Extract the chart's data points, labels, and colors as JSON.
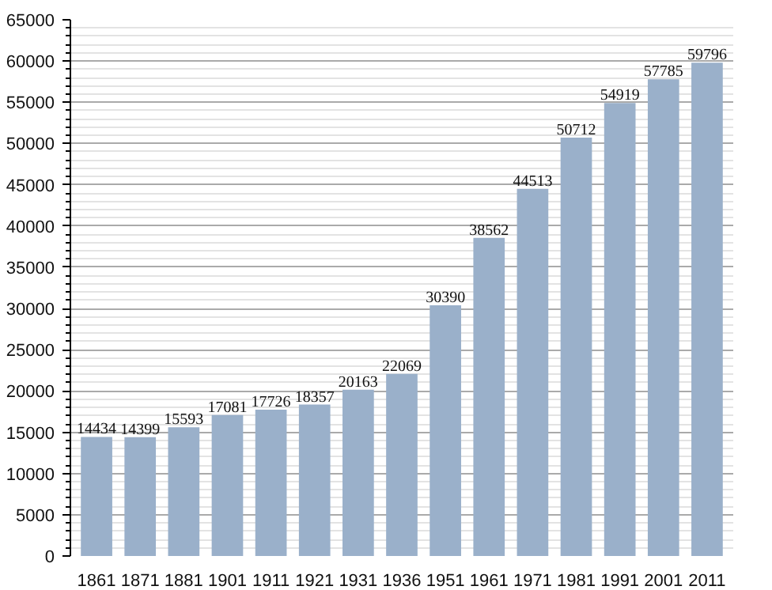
{
  "chart_data": {
    "type": "bar",
    "categories": [
      "1861",
      "1871",
      "1881",
      "1901",
      "1911",
      "1921",
      "1931",
      "1936",
      "1951",
      "1961",
      "1971",
      "1981",
      "1991",
      "2001",
      "2011"
    ],
    "values": [
      14434,
      14399,
      15593,
      17081,
      17726,
      18357,
      20163,
      22069,
      30390,
      38562,
      44513,
      50712,
      54919,
      57785,
      59796
    ],
    "color": "#9ab0ca",
    "data_labels": true,
    "grid": "y",
    "ylim": [
      0,
      65000
    ],
    "yticks": [
      0,
      5000,
      10000,
      15000,
      20000,
      25000,
      30000,
      35000,
      40000,
      45000,
      50000,
      55000,
      60000,
      65000
    ]
  }
}
